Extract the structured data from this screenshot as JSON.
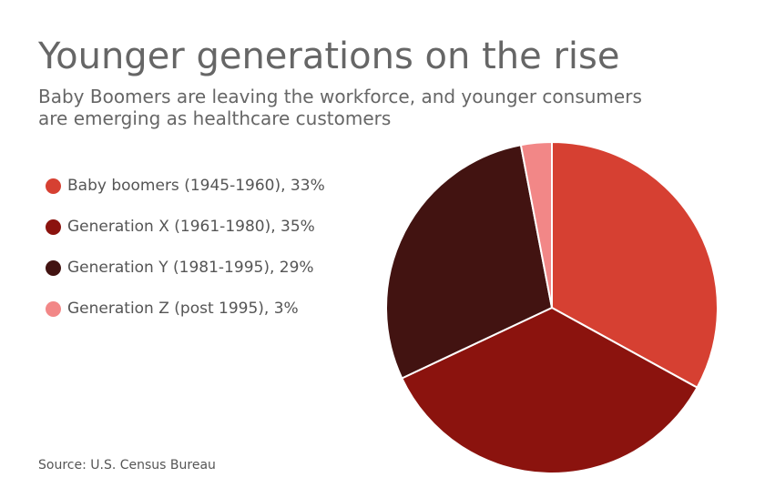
{
  "chart_data": {
    "type": "pie",
    "title": "Younger generations on the rise",
    "subtitle": "Baby Boomers are leaving the workforce, and younger consumers are emerging as healthcare customers",
    "legend_position": "left",
    "slices": [
      {
        "label": "Baby boomers (1945-1960), 33%",
        "value": 33,
        "color": "#d64032"
      },
      {
        "label": "Generation X (1961-1980), 35%",
        "value": 35,
        "color": "#8b130e"
      },
      {
        "label": "Generation Y (1981-1995), 29%",
        "value": 29,
        "color": "#421311"
      },
      {
        "label": "Generation Z (post 1995), 3%",
        "value": 3,
        "color": "#f28787"
      }
    ],
    "source": "Source: U.S. Census Bureau"
  }
}
